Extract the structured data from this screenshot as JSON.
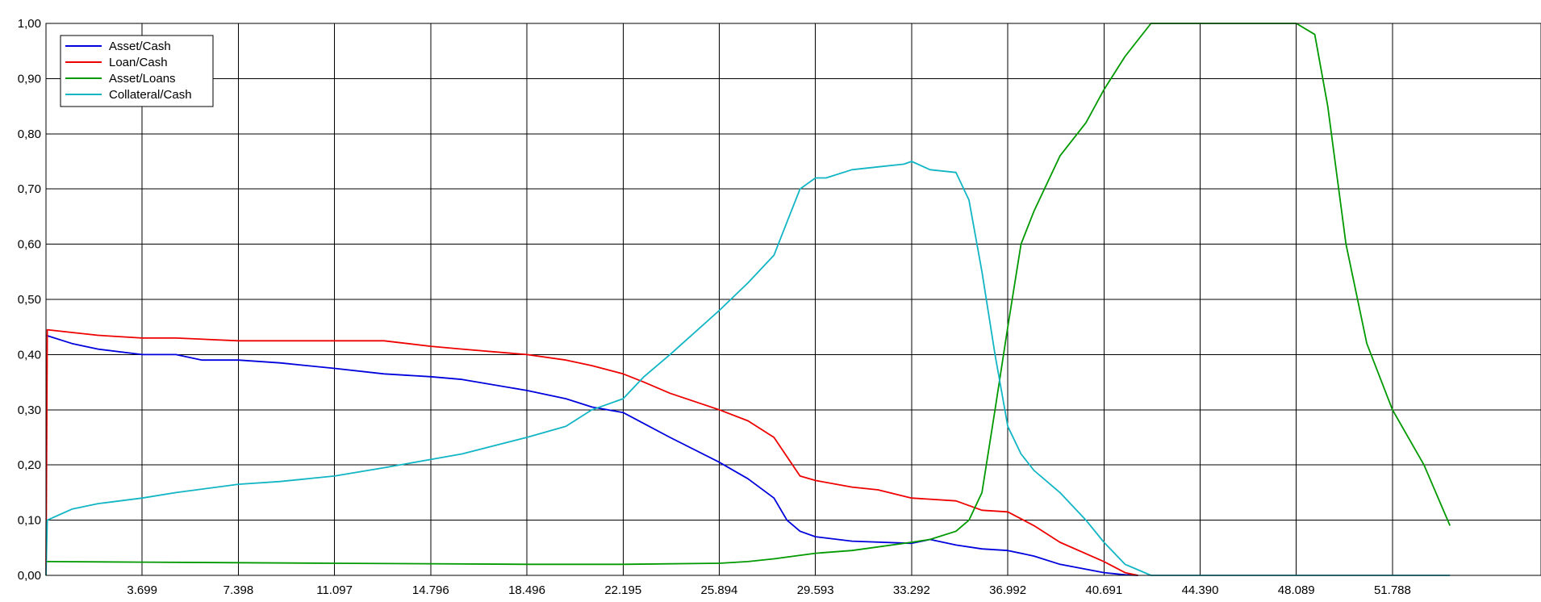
{
  "chart_data": {
    "type": "line",
    "title": "",
    "xlabel": "",
    "ylabel": "",
    "xlim": [
      0,
      57.5
    ],
    "ylim": [
      0,
      1
    ],
    "grid": true,
    "legend_position": "top-left",
    "x_ticks": [
      "3.699",
      "7.398",
      "11.097",
      "14.796",
      "18.496",
      "22.195",
      "25.894",
      "29.593",
      "33.292",
      "36.992",
      "40.691",
      "44.390",
      "48.089",
      "51.788"
    ],
    "y_ticks": [
      "0,00",
      "0,10",
      "0,20",
      "0,30",
      "0,40",
      "0,50",
      "0,60",
      "0,70",
      "0,80",
      "0,90",
      "1,00"
    ],
    "series": [
      {
        "name": "Asset/Cash",
        "color": "#0000dd",
        "x": [
          0,
          1,
          2,
          3.699,
          5,
          6,
          7.398,
          9,
          11.097,
          13,
          14.796,
          16,
          18.496,
          20,
          21,
          22.195,
          23,
          24,
          25.894,
          27,
          28,
          28.5,
          29,
          29.593,
          31,
          33.292,
          34,
          35,
          36,
          36.992,
          38,
          39,
          40.691,
          41.5,
          42
        ],
        "y": [
          0.435,
          0.42,
          0.41,
          0.4,
          0.4,
          0.39,
          0.39,
          0.385,
          0.375,
          0.365,
          0.36,
          0.355,
          0.335,
          0.32,
          0.305,
          0.295,
          0.275,
          0.25,
          0.205,
          0.175,
          0.14,
          0.1,
          0.08,
          0.07,
          0.062,
          0.058,
          0.065,
          0.055,
          0.048,
          0.045,
          0.035,
          0.02,
          0.005,
          0.001,
          0
        ]
      },
      {
        "name": "Loan/Cash",
        "color": "#ee0000",
        "x": [
          0,
          0.05,
          1,
          2,
          3.699,
          5,
          7.398,
          9,
          11.097,
          13,
          14.796,
          16,
          18.496,
          20,
          21,
          22.195,
          23,
          24,
          25.894,
          27,
          28,
          28.5,
          29,
          29.593,
          31,
          32,
          33.292,
          34,
          35,
          36,
          36.992,
          38,
          39,
          40.691,
          41.5,
          42
        ],
        "y": [
          0,
          0.445,
          0.44,
          0.435,
          0.43,
          0.43,
          0.425,
          0.425,
          0.425,
          0.425,
          0.415,
          0.41,
          0.4,
          0.39,
          0.38,
          0.365,
          0.35,
          0.33,
          0.3,
          0.28,
          0.25,
          0.215,
          0.18,
          0.172,
          0.16,
          0.155,
          0.14,
          0.138,
          0.135,
          0.118,
          0.115,
          0.09,
          0.06,
          0.025,
          0.005,
          0
        ]
      },
      {
        "name": "Asset/Loans",
        "color": "#009900",
        "x": [
          0,
          3.699,
          7.398,
          11.097,
          14.796,
          18.496,
          22.195,
          25.894,
          27,
          28,
          29.593,
          31,
          33.292,
          34,
          35,
          35.5,
          36,
          36.5,
          36.992,
          37.5,
          38,
          39,
          40,
          40.691,
          41.5,
          42.5,
          44.39,
          48.089,
          48.8,
          49.3,
          50,
          50.8,
          51.788,
          53,
          54
        ],
        "y": [
          0.025,
          0.024,
          0.023,
          0.022,
          0.021,
          0.02,
          0.02,
          0.022,
          0.025,
          0.03,
          0.04,
          0.045,
          0.06,
          0.065,
          0.08,
          0.1,
          0.15,
          0.3,
          0.45,
          0.6,
          0.66,
          0.76,
          0.82,
          0.88,
          0.94,
          1.0,
          1.0,
          1.0,
          0.98,
          0.85,
          0.6,
          0.42,
          0.3,
          0.2,
          0.09
        ]
      },
      {
        "name": "Collateral/Cash",
        "color": "#11b5c4",
        "x": [
          0,
          0.05,
          1,
          2,
          3.699,
          5,
          7.398,
          9,
          11.097,
          13,
          14.796,
          16,
          18.496,
          20,
          21,
          22.195,
          23,
          24,
          25.894,
          27,
          28,
          28.5,
          29,
          29.593,
          30,
          31,
          32,
          33,
          33.292,
          34,
          35,
          35.5,
          36,
          36.5,
          36.992,
          37.5,
          38,
          39,
          40,
          40.691,
          41.5,
          42.5,
          44.39,
          54
        ],
        "y": [
          0,
          0.1,
          0.12,
          0.13,
          0.14,
          0.15,
          0.165,
          0.17,
          0.18,
          0.195,
          0.21,
          0.22,
          0.25,
          0.27,
          0.3,
          0.32,
          0.36,
          0.4,
          0.48,
          0.53,
          0.58,
          0.64,
          0.7,
          0.72,
          0.72,
          0.735,
          0.74,
          0.745,
          0.75,
          0.735,
          0.73,
          0.68,
          0.55,
          0.4,
          0.27,
          0.22,
          0.19,
          0.15,
          0.1,
          0.06,
          0.02,
          0.0,
          0.0,
          0.0
        ]
      }
    ]
  }
}
